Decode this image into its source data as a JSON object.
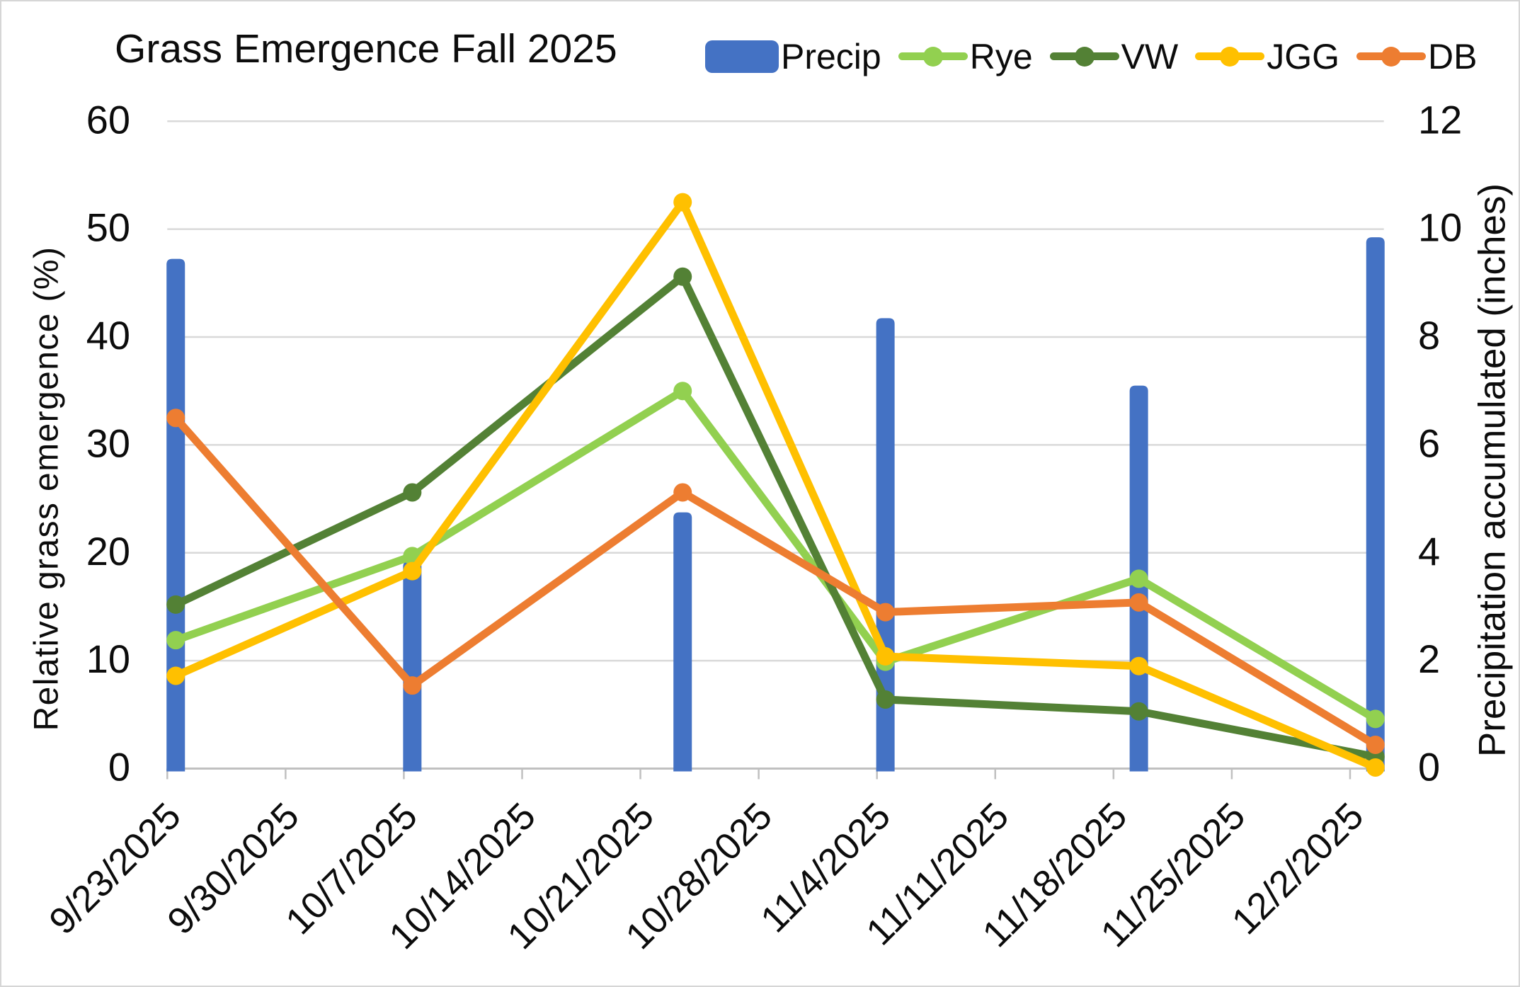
{
  "title": "Grass Emergence Fall 2025",
  "legend": [
    {
      "label": "Precip",
      "type": "bar-swatch",
      "color": "#4472C4"
    },
    {
      "label": "Rye",
      "type": "line-marker",
      "color": "#92D050"
    },
    {
      "label": "VW",
      "type": "line-marker",
      "color": "#538135"
    },
    {
      "label": "JGG",
      "type": "line-marker",
      "color": "#FFC000"
    },
    {
      "label": "DB",
      "type": "line-marker",
      "color": "#ED7D31"
    }
  ],
  "left_axis": {
    "title": "Relative grass emergence (%)",
    "ticks": [
      0,
      10,
      20,
      30,
      40,
      50,
      60
    ],
    "min": 0,
    "max": 60
  },
  "right_axis": {
    "title": "Precipitation accumulated (inches)",
    "ticks": [
      0,
      2,
      4,
      6,
      8,
      10,
      12
    ],
    "min": 0,
    "max": 12
  },
  "x_axis": {
    "start_date": "9/23/2025",
    "end_date": "12/4/2025",
    "tick_labels": [
      "9/23/2025",
      "9/30/2025",
      "10/7/2025",
      "10/14/2025",
      "10/21/2025",
      "10/28/2025",
      "11/4/2025",
      "11/11/2025",
      "11/18/2025",
      "11/25/2025",
      "12/2/2025"
    ]
  },
  "chart_data": {
    "type": "combo-bar-line",
    "x_dates": [
      "9/23/2025",
      "10/7/2025",
      "10/23/2025",
      "11/4/2025",
      "11/19/2025",
      "12/3/2025"
    ],
    "bar_series": {
      "name": "Precip",
      "axis": "right",
      "unit": "inches",
      "color": "#4472C4",
      "values": [
        9.45,
        3.85,
        4.75,
        8.35,
        7.1,
        9.85
      ]
    },
    "line_series": [
      {
        "name": "Rye",
        "axis": "left",
        "unit": "%",
        "color": "#92D050",
        "values": [
          11.9,
          19.7,
          35.0,
          9.9,
          17.6,
          4.6
        ]
      },
      {
        "name": "VW",
        "axis": "left",
        "unit": "%",
        "color": "#538135",
        "values": [
          15.2,
          25.6,
          45.6,
          6.4,
          5.3,
          1.1
        ]
      },
      {
        "name": "JGG",
        "axis": "left",
        "unit": "%",
        "color": "#FFC000",
        "values": [
          8.6,
          18.3,
          52.5,
          10.4,
          9.5,
          0.1
        ]
      },
      {
        "name": "DB",
        "axis": "left",
        "unit": "%",
        "color": "#ED7D31",
        "values": [
          32.5,
          7.7,
          25.6,
          14.5,
          15.4,
          2.2
        ]
      }
    ],
    "grid": "horizontal",
    "legend_position": "top"
  },
  "colors": {
    "gridline": "#D9D9D9",
    "axis_line": "#C0C0C0",
    "tick_text": "#0c0c0c",
    "background": "#FFFFFF",
    "page_border": "#D6D6D6"
  }
}
